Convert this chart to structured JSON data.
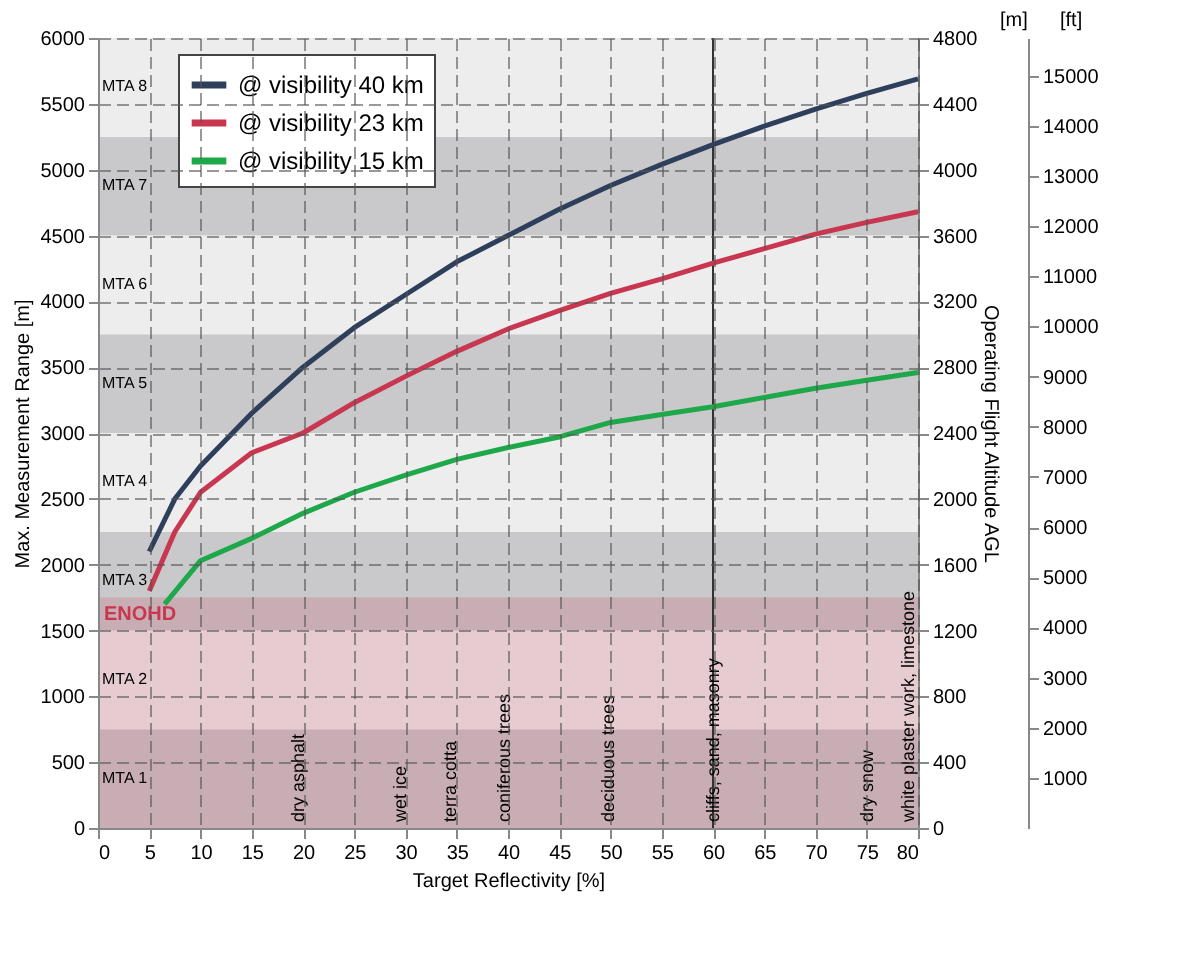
{
  "chart_data": {
    "type": "line",
    "xlabel": "Target Reflectivity [%]",
    "ylabel": "Max. Measurement Range [m]",
    "y2label": "Operating Flight Altitude AGL",
    "xlim": [
      0,
      80
    ],
    "xticks": [
      0,
      5,
      10,
      15,
      20,
      25,
      30,
      35,
      40,
      45,
      50,
      55,
      60,
      65,
      70,
      75,
      80
    ],
    "ylim": [
      0,
      6000
    ],
    "yticks": [
      0,
      500,
      1000,
      1500,
      2000,
      2500,
      3000,
      3500,
      4000,
      4500,
      5000,
      5500,
      6000
    ],
    "y2lim": [
      0,
      4800
    ],
    "y2ticks": [
      0,
      400,
      800,
      1200,
      1600,
      2000,
      2400,
      2800,
      3200,
      3600,
      4000,
      4400,
      4800
    ],
    "y3lim": [
      0,
      15748
    ],
    "y3ticks": [
      1000,
      2000,
      3000,
      4000,
      5000,
      6000,
      7000,
      8000,
      9000,
      10000,
      11000,
      12000,
      13000,
      14000,
      15000
    ],
    "grid": true,
    "legend": "top left",
    "line_style": "solid",
    "marker": "none",
    "series": [
      {
        "name": "@ visibility 40 km",
        "color": "#2e3f5c",
        "x": [
          5,
          7.5,
          10,
          15,
          20,
          25,
          30,
          35,
          40,
          45,
          50,
          55,
          60,
          65,
          70,
          75,
          80
        ],
        "values": [
          2100,
          2500,
          2750,
          3150,
          3500,
          3800,
          4050,
          4300,
          4500,
          4700,
          4880,
          5040,
          5190,
          5330,
          5460,
          5580,
          5690
        ]
      },
      {
        "name": "@ visibility 23 km",
        "color": "#c8364f",
        "x": [
          5,
          7.5,
          10,
          15,
          20,
          25,
          30,
          35,
          40,
          45,
          50,
          55,
          60,
          65,
          70,
          75,
          80
        ],
        "values": [
          1800,
          2250,
          2550,
          2850,
          3000,
          3230,
          3430,
          3620,
          3790,
          3930,
          4060,
          4170,
          4290,
          4400,
          4510,
          4600,
          4680
        ]
      },
      {
        "name": "@ visibility 15 km",
        "color": "#1ea84a",
        "x": [
          6.5,
          10,
          15,
          20,
          25,
          30,
          35,
          40,
          45,
          50,
          55,
          60,
          65,
          70,
          75,
          80
        ],
        "values": [
          1700,
          2030,
          2200,
          2390,
          2550,
          2680,
          2800,
          2890,
          2970,
          3080,
          3140,
          3200,
          3270,
          3340,
          3400,
          3460
        ]
      }
    ],
    "bands": [
      {
        "axis": "y",
        "from": 0,
        "to": 750,
        "label": "MTA 1",
        "color": "#c9c9cb"
      },
      {
        "axis": "y",
        "from": 750,
        "to": 1500,
        "label": "MTA 2",
        "color": "#ededee"
      },
      {
        "axis": "y",
        "from": 1500,
        "to": 2250,
        "label": "MTA 3",
        "color": "#c9c9cb"
      },
      {
        "axis": "y",
        "from": 2250,
        "to": 3000,
        "label": "MTA 4",
        "color": "#ededee"
      },
      {
        "axis": "y",
        "from": 3000,
        "to": 3750,
        "label": "MTA 5",
        "color": "#c9c9cb"
      },
      {
        "axis": "y",
        "from": 3750,
        "to": 4500,
        "label": "MTA 6",
        "color": "#ededee"
      },
      {
        "axis": "y",
        "from": 4500,
        "to": 5250,
        "label": "MTA 7",
        "color": "#c9c9cb"
      },
      {
        "axis": "y",
        "from": 5250,
        "to": 6000,
        "label": "MTA 8",
        "color": "#ededee"
      },
      {
        "axis": "y",
        "from": 0,
        "to": 1750,
        "label": "ENOHD",
        "color": "#c8364f"
      }
    ],
    "ref_lines": [
      {
        "axis": "x",
        "value": 60,
        "color": "#333333"
      }
    ],
    "annotations": [
      {
        "text": "dry asphalt",
        "x": 19.5,
        "y": 0
      },
      {
        "text": "wet ice",
        "x": 29.5,
        "y": 0
      },
      {
        "text": "terra cotta",
        "x": 34.3,
        "y": 0
      },
      {
        "text": "coniferous trees",
        "x": 39.6,
        "y": 0
      },
      {
        "text": "deciduous trees",
        "x": 49.8,
        "y": 0
      },
      {
        "text": "cliffs, sand, masonry",
        "x": 60,
        "y": 0
      },
      {
        "text": "dry snow",
        "x": 75,
        "y": 0
      },
      {
        "text": "white plaster work, limestone",
        "x": 79,
        "y": 0
      },
      "[m]",
      "[ft]"
    ]
  }
}
